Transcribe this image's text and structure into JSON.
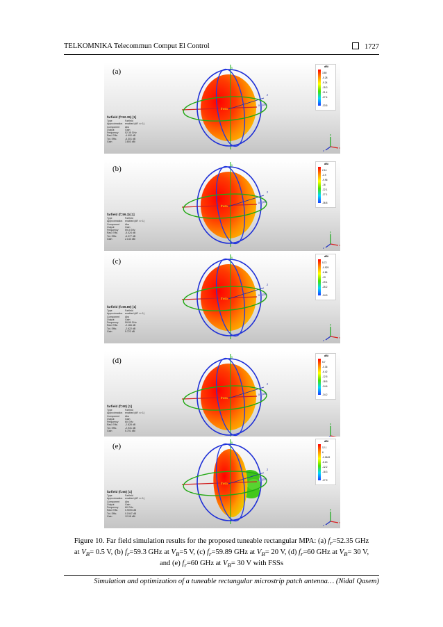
{
  "header": {
    "journal": "TELKOMNIKA Telecommun Comput El Control",
    "page_number": "1727"
  },
  "panel_common": {
    "keys": [
      "Type",
      "Approximation",
      "Component",
      "Output",
      "Frequency",
      "Rad. Effic.",
      "Tot. Effic.",
      "Gain"
    ],
    "unit": "dBi",
    "axis": {
      "x": "x",
      "y": "y",
      "z": "z",
      "theta": "theta",
      "phi": "phi"
    }
  },
  "panels": [
    {
      "label": "(a)",
      "title": "farfield (f=52.35) [1]",
      "values": [
        "Farfield",
        "enabled (kR >> 1)",
        "Abs",
        "Gain",
        "52.35 GHz",
        "-4.992 dB",
        "-5.301 dB",
        "3.803 dBi"
      ],
      "scale": [
        "3.80",
        "-5.28",
        "-9.24",
        "-15.3",
        "-21.4",
        "-27.4",
        "-33.5"
      ]
    },
    {
      "label": "(b)",
      "title": "farfield (f=59.3) [1]",
      "values": [
        "Farfield",
        "enabled (kR >> 1)",
        "Abs",
        "Gain",
        "59.3 GHz",
        "-5.024 dB",
        "-6.077 dB",
        "2.143 dBi"
      ],
      "scale": [
        "2.14",
        "-3.9",
        "-9.96",
        "-16",
        "-22.1",
        "-27.1",
        "-36.8"
      ]
    },
    {
      "label": "(c)",
      "title": "farfield (f=59.89) [1]",
      "values": [
        "Farfield",
        "enabled (kR >> 1)",
        "Abs",
        "Gain",
        "59.89 GHz",
        "-2.166 dB",
        "-2.622 dB",
        "5.722 dB"
      ],
      "scale": [
        "5.72",
        "-0.929",
        "-6.86",
        "-13",
        "-19.1",
        "-25.2",
        "-34.9"
      ]
    },
    {
      "label": "(d)",
      "title": "farfield (f=60) [1]",
      "values": [
        "Farfield",
        "enabled (kR >> 1)",
        "Abs",
        "Gain",
        "60 GHz",
        "-2.828 dB",
        "-2.931 dB",
        "5.701 dBi"
      ],
      "scale": [
        "5.7",
        "-0.36",
        "-6.42",
        "-12.5",
        "-18.5",
        "-24.6",
        "-34.2"
      ]
    },
    {
      "label": "(e)",
      "title": "farfield (f=60) [1]",
      "values": [
        "Farfield",
        "enabled (kR >> 1)",
        "Abs",
        "Gain",
        "60 GHz",
        "0.9093 dB",
        "0.1947 dB",
        "12.08 dBi"
      ],
      "scale": [
        "12.1",
        "6",
        "-0.0649",
        "-6.13",
        "-12.2",
        "-18.3",
        "-27.9"
      ]
    }
  ],
  "caption": {
    "l1a": "Figure 10. Far field simulation results for the proposed tuneable rectangular MPA: (a) ",
    "l1b": "=52.35 GHz",
    "l2a": "at ",
    "l2b": "= 0.5 V, (b) ",
    "l2c": "=59.3 GHz at ",
    "l2d": "=5 V, (c) ",
    "l2e": "=59.89 GHz at ",
    "l2f": "= 20 V, (d) ",
    "l2g": "=60 GHz at ",
    "l2h": "= 30 V,",
    "l3a": "and (e) ",
    "l3b": "=60 GHz at ",
    "l3c": "= 30 V with FSSs",
    "sym_f": "f",
    "sub_r": "r",
    "sym_v": "V",
    "sub_b": "B"
  },
  "footer": {
    "text": "Simulation and optimization of a tuneable rectangular microstrip patch antenna… (Nidal Qasem)"
  }
}
